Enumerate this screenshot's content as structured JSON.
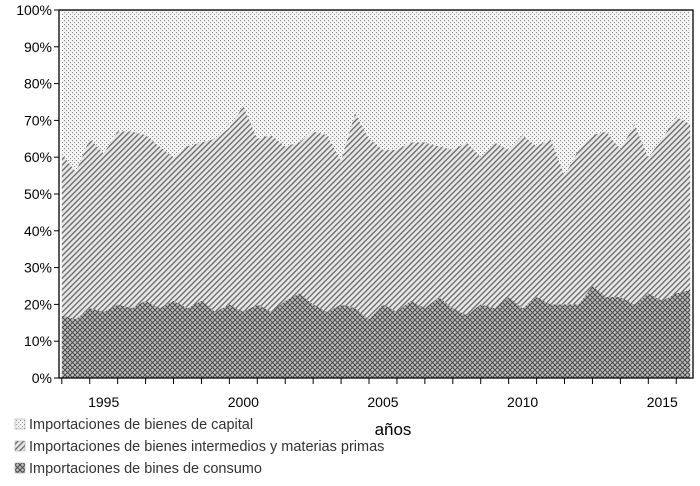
{
  "chart_data": {
    "type": "area",
    "stacked": true,
    "percent": true,
    "xlabel": "años",
    "ylabel": "",
    "ylim": [
      0,
      100
    ],
    "yticks": [
      "0%",
      "10%",
      "20%",
      "30%",
      "40%",
      "50%",
      "60%",
      "70%",
      "80%",
      "90%",
      "100%"
    ],
    "xlim": [
      1993.9,
      2016.6
    ],
    "xticks": [
      "1995",
      "2000",
      "2005",
      "2010",
      "2015"
    ],
    "legend_position": "bottom-left",
    "series": [
      {
        "name": "Importaciones de bines de consumo",
        "pattern": "crosshatch",
        "x": [
          1994.0,
          1994.5,
          1995.0,
          1995.5,
          1996.0,
          1996.5,
          1997.0,
          1997.5,
          1998.0,
          1998.5,
          1999.0,
          1999.5,
          2000.0,
          2000.5,
          2001.0,
          2001.5,
          2002.0,
          2002.5,
          2003.0,
          2003.5,
          2004.0,
          2004.5,
          2005.0,
          2005.5,
          2006.0,
          2006.5,
          2007.0,
          2007.5,
          2008.0,
          2008.5,
          2009.0,
          2009.5,
          2010.0,
          2010.5,
          2011.0,
          2011.5,
          2012.0,
          2012.5,
          2013.0,
          2013.5,
          2014.0,
          2014.5,
          2015.0,
          2015.5,
          2016.0,
          2016.5
        ],
        "values": [
          17,
          16,
          19,
          18,
          20,
          19,
          21,
          19,
          21,
          19,
          21,
          18,
          20,
          18,
          20,
          18,
          21,
          23,
          20,
          18,
          20,
          19,
          16,
          20,
          18,
          21,
          19,
          22,
          19,
          17,
          20,
          19,
          22,
          19,
          22,
          20,
          20,
          20,
          25,
          22,
          22,
          20,
          23,
          21,
          23,
          24
        ]
      },
      {
        "name": "Importaciones de bienes intermedios y materias primas",
        "pattern": "diagonal",
        "x": [
          1994.0,
          1994.5,
          1995.0,
          1995.5,
          1996.0,
          1996.5,
          1997.0,
          1997.5,
          1998.0,
          1998.5,
          1999.0,
          1999.5,
          2000.0,
          2000.5,
          2001.0,
          2001.5,
          2002.0,
          2002.5,
          2003.0,
          2003.5,
          2004.0,
          2004.5,
          2005.0,
          2005.5,
          2006.0,
          2006.5,
          2007.0,
          2007.5,
          2008.0,
          2008.5,
          2009.0,
          2009.5,
          2010.0,
          2010.5,
          2011.0,
          2011.5,
          2012.0,
          2012.5,
          2013.0,
          2013.5,
          2014.0,
          2014.5,
          2015.0,
          2015.5,
          2016.0,
          2016.5
        ],
        "values": [
          44,
          40,
          46,
          43,
          47,
          48,
          45,
          44,
          39,
          44,
          43,
          47,
          48,
          56,
          45,
          48,
          42,
          41,
          47,
          48,
          39,
          53,
          49,
          42,
          44,
          43,
          45,
          41,
          43,
          47,
          40,
          45,
          40,
          47,
          41,
          45,
          35,
          42,
          41,
          45,
          40,
          49,
          37,
          44,
          48,
          45
        ]
      },
      {
        "name": "Importaciones de bienes de capital",
        "pattern": "dotted",
        "x": [
          1994.0,
          1994.5,
          1995.0,
          1995.5,
          1996.0,
          1996.5,
          1997.0,
          1997.5,
          1998.0,
          1998.5,
          1999.0,
          1999.5,
          2000.0,
          2000.5,
          2001.0,
          2001.5,
          2002.0,
          2002.5,
          2003.0,
          2003.5,
          2004.0,
          2004.5,
          2005.0,
          2005.5,
          2006.0,
          2006.5,
          2007.0,
          2007.5,
          2008.0,
          2008.5,
          2009.0,
          2009.5,
          2010.0,
          2010.5,
          2011.0,
          2011.5,
          2012.0,
          2012.5,
          2013.0,
          2013.5,
          2014.0,
          2014.5,
          2015.0,
          2015.5,
          2016.0,
          2016.5
        ],
        "values": [
          39,
          44,
          35,
          39,
          33,
          33,
          34,
          37,
          40,
          37,
          36,
          35,
          32,
          26,
          35,
          34,
          37,
          36,
          33,
          34,
          41,
          28,
          35,
          38,
          38,
          36,
          36,
          37,
          38,
          36,
          40,
          36,
          38,
          34,
          37,
          35,
          45,
          38,
          34,
          33,
          38,
          31,
          40,
          35,
          29,
          31
        ]
      }
    ],
    "legend_order": [
      "Importaciones de bienes de capital",
      "Importaciones de bienes intermedios y materias primas",
      "Importaciones de bines de consumo"
    ]
  }
}
